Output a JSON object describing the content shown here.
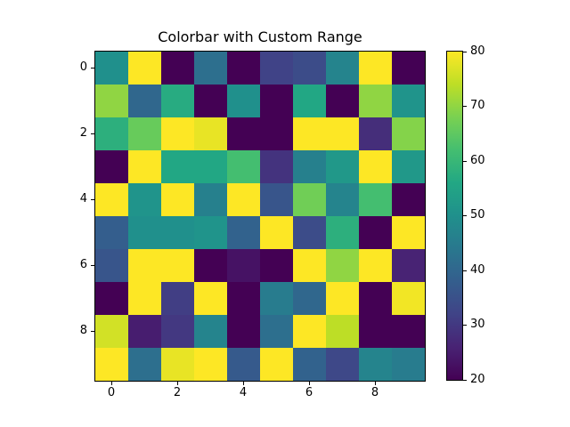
{
  "chart_data": {
    "type": "heatmap",
    "title": "Colorbar with Custom Range",
    "xlabel": "",
    "ylabel": "",
    "colormap": "viridis",
    "vmin": 20,
    "vmax": 80,
    "x_ticks": [
      0,
      2,
      4,
      6,
      8
    ],
    "y_ticks": [
      0,
      2,
      4,
      6,
      8
    ],
    "colorbar_ticks": [
      20,
      30,
      40,
      50,
      60,
      70,
      80
    ],
    "grid": false,
    "rows": 10,
    "cols": 10,
    "values": [
      [
        50,
        80,
        20,
        42,
        20,
        32,
        34,
        47,
        80,
        20
      ],
      [
        70,
        40,
        57,
        20,
        50,
        20,
        56,
        20,
        70,
        51
      ],
      [
        58,
        66,
        80,
        78,
        20,
        20,
        80,
        80,
        28,
        69
      ],
      [
        20,
        80,
        56,
        56,
        62,
        29,
        46,
        52,
        80,
        52
      ],
      [
        80,
        51,
        80,
        46,
        80,
        36,
        67,
        47,
        62,
        20
      ],
      [
        38,
        50,
        50,
        51,
        39,
        80,
        34,
        58,
        20,
        80
      ],
      [
        36,
        80,
        80,
        20,
        23,
        20,
        80,
        70,
        80,
        26
      ],
      [
        20,
        80,
        31,
        80,
        20,
        45,
        40,
        80,
        20,
        79
      ],
      [
        76,
        25,
        30,
        47,
        20,
        42,
        80,
        74,
        20,
        20
      ],
      [
        80,
        42,
        78,
        80,
        37,
        80,
        39,
        33,
        47,
        45
      ]
    ]
  },
  "labels": {
    "title": "Colorbar with Custom Range",
    "x": [
      "0",
      "2",
      "4",
      "6",
      "8"
    ],
    "y": [
      "0",
      "2",
      "4",
      "6",
      "8"
    ],
    "cbar": [
      "20",
      "30",
      "40",
      "50",
      "60",
      "70",
      "80"
    ]
  }
}
